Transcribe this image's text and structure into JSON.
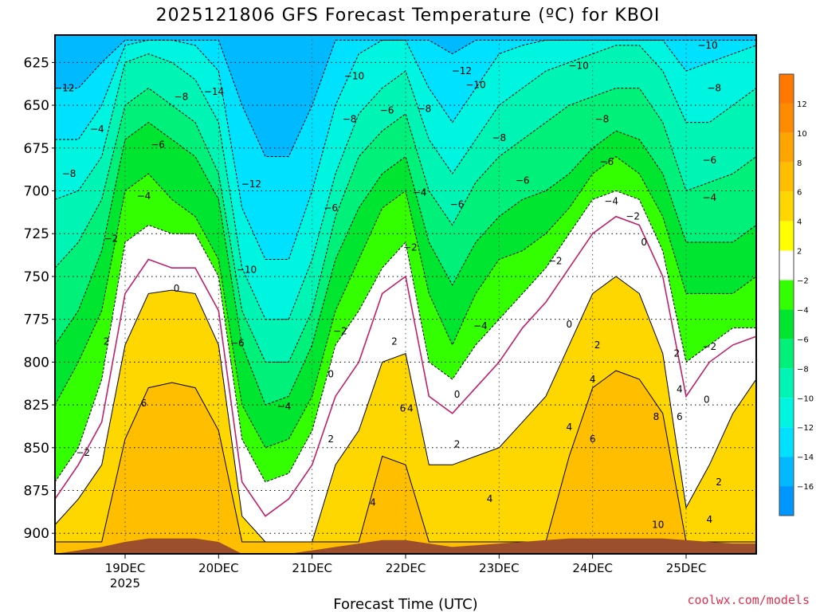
{
  "chart_data": {
    "type": "heatmap",
    "title": "2025121806 GFS Forecast Temperature (ºC) for KBOI",
    "xlabel": "Forecast Time (UTC)",
    "ylabel": "",
    "credit": "coolwx.com/models",
    "y_axis": {
      "ylim": [
        912,
        609
      ],
      "ticks": [
        625,
        650,
        675,
        700,
        725,
        750,
        775,
        800,
        825,
        850,
        875,
        900
      ],
      "scale": "pressure (inverted)"
    },
    "x_axis": {
      "unit": "days from 2025-12-18 06Z",
      "xlim": [
        0,
        7.5
      ],
      "ticks": [
        {
          "x": 0.75,
          "label": "19DEC",
          "sub": "2025"
        },
        {
          "x": 1.75,
          "label": "20DEC",
          "sub": ""
        },
        {
          "x": 2.75,
          "label": "21DEC",
          "sub": ""
        },
        {
          "x": 3.75,
          "label": "22DEC",
          "sub": ""
        },
        {
          "x": 4.75,
          "label": "23DEC",
          "sub": ""
        },
        {
          "x": 5.75,
          "label": "24DEC",
          "sub": ""
        },
        {
          "x": 6.75,
          "label": "25DEC",
          "sub": ""
        }
      ]
    },
    "grid": true,
    "colorbar": {
      "ticks": [
        12,
        10,
        8,
        6,
        4,
        2,
        -2,
        -4,
        -6,
        -8,
        -10,
        -12,
        -14,
        -16
      ],
      "bands": [
        {
          "lo": 12,
          "hi": 14,
          "color": "#ff7800"
        },
        {
          "lo": 10,
          "hi": 12,
          "color": "#ff8c00"
        },
        {
          "lo": 8,
          "hi": 10,
          "color": "#ffa500"
        },
        {
          "lo": 6,
          "hi": 8,
          "color": "#ffbe00"
        },
        {
          "lo": 4,
          "hi": 6,
          "color": "#ffd700"
        },
        {
          "lo": 2,
          "hi": 4,
          "color": "#ffff00"
        },
        {
          "lo": -2,
          "hi": 2,
          "color": "#ffffff"
        },
        {
          "lo": -4,
          "hi": -2,
          "color": "#33ff00"
        },
        {
          "lo": -6,
          "hi": -4,
          "color": "#00e630"
        },
        {
          "lo": -8,
          "hi": -6,
          "color": "#00f07a"
        },
        {
          "lo": -10,
          "hi": -8,
          "color": "#00f5b4"
        },
        {
          "lo": -12,
          "hi": -10,
          "color": "#00f5e1"
        },
        {
          "lo": -14,
          "hi": -12,
          "color": "#00e1ff"
        },
        {
          "lo": -16,
          "hi": -14,
          "color": "#00b9ff"
        },
        {
          "lo": -18,
          "hi": -16,
          "color": "#0096ff"
        }
      ]
    },
    "terrain_color": "#9c4f2c",
    "zero_line_color": "#c0206a",
    "time_days": [
      0,
      0.25,
      0.5,
      0.75,
      1.0,
      1.25,
      1.5,
      1.75,
      2.0,
      2.25,
      2.5,
      2.75,
      3.0,
      3.25,
      3.5,
      3.75,
      4.0,
      4.25,
      4.5,
      4.75,
      5.0,
      5.25,
      5.5,
      5.75,
      6.0,
      6.25,
      6.5,
      6.75,
      7.0,
      7.25,
      7.5
    ],
    "isotherm_pressure_hPa": [
      {
        "temp": 6,
        "values": [
          905,
          905,
          905,
          845,
          815,
          812,
          815,
          840,
          905,
          905,
          905,
          905,
          905,
          905,
          855,
          860,
          905,
          905,
          905,
          905,
          905,
          905,
          855,
          815,
          805,
          810,
          830,
          905,
          905,
          905,
          905
        ]
      },
      {
        "temp": 2,
        "values": [
          895,
          880,
          860,
          790,
          760,
          758,
          760,
          790,
          890,
          905,
          905,
          905,
          860,
          840,
          800,
          795,
          860,
          860,
          855,
          850,
          835,
          820,
          790,
          760,
          750,
          760,
          795,
          885,
          860,
          830,
          810
        ]
      },
      {
        "temp": 0,
        "values": [
          880,
          860,
          835,
          760,
          740,
          745,
          745,
          770,
          870,
          890,
          880,
          860,
          820,
          800,
          760,
          750,
          820,
          830,
          815,
          800,
          780,
          765,
          745,
          725,
          715,
          720,
          750,
          820,
          800,
          790,
          785
        ]
      },
      {
        "temp": -2,
        "values": [
          870,
          850,
          810,
          730,
          720,
          725,
          725,
          750,
          845,
          870,
          865,
          840,
          790,
          770,
          745,
          730,
          800,
          810,
          790,
          775,
          760,
          745,
          725,
          705,
          700,
          705,
          735,
          800,
          790,
          780,
          780
        ]
      },
      {
        "temp": -4,
        "values": [
          825,
          800,
          770,
          700,
          690,
          705,
          715,
          740,
          825,
          850,
          845,
          820,
          770,
          740,
          710,
          700,
          760,
          790,
          760,
          740,
          735,
          725,
          710,
          690,
          680,
          690,
          715,
          760,
          760,
          760,
          750
        ]
      },
      {
        "temp": -6,
        "values": [
          790,
          770,
          735,
          670,
          660,
          670,
          680,
          705,
          790,
          825,
          820,
          790,
          740,
          710,
          690,
          680,
          730,
          755,
          730,
          715,
          705,
          700,
          690,
          675,
          665,
          670,
          690,
          730,
          730,
          730,
          720
        ]
      },
      {
        "temp": -8,
        "values": [
          745,
          730,
          705,
          650,
          640,
          650,
          660,
          690,
          770,
          800,
          800,
          770,
          715,
          680,
          665,
          655,
          700,
          720,
          695,
          680,
          670,
          660,
          650,
          645,
          640,
          640,
          660,
          700,
          695,
          690,
          680
        ]
      },
      {
        "temp": -10,
        "values": [
          705,
          700,
          680,
          625,
          620,
          625,
          635,
          660,
          745,
          775,
          775,
          740,
          690,
          655,
          640,
          630,
          670,
          690,
          670,
          650,
          640,
          630,
          625,
          620,
          615,
          615,
          630,
          660,
          660,
          650,
          640
        ]
      },
      {
        "temp": -12,
        "values": [
          670,
          670,
          650,
          615,
          612,
          612,
          615,
          630,
          710,
          740,
          740,
          700,
          650,
          620,
          612,
          612,
          640,
          660,
          640,
          620,
          615,
          612,
          612,
          612,
          612,
          612,
          612,
          630,
          625,
          620,
          615
        ]
      },
      {
        "temp": -14,
        "values": [
          640,
          640,
          625,
          612,
          612,
          612,
          612,
          612,
          650,
          680,
          680,
          650,
          612,
          612,
          612,
          612,
          612,
          620,
          612,
          612,
          612,
          612,
          612,
          612,
          612,
          612,
          612,
          612,
          612,
          612,
          612
        ]
      }
    ],
    "terrain_pressure_hPa": [
      912,
      910,
      908,
      905,
      903,
      903,
      903,
      905,
      912,
      912,
      912,
      910,
      908,
      906,
      904,
      904,
      906,
      908,
      907,
      906,
      905,
      904,
      903,
      903,
      903,
      903,
      903,
      904,
      905,
      906,
      906
    ],
    "contour_labels": [
      {
        "temp": -12,
        "x": 0.1,
        "y": 640
      },
      {
        "temp": -8,
        "x": 0.15,
        "y": 690
      },
      {
        "temp": -4,
        "x": 0.45,
        "y": 664
      },
      {
        "temp": -6,
        "x": 1.1,
        "y": 673
      },
      {
        "temp": -8,
        "x": 1.35,
        "y": 645
      },
      {
        "temp": -14,
        "x": 1.7,
        "y": 642
      },
      {
        "temp": -4,
        "x": 0.95,
        "y": 703
      },
      {
        "temp": -2,
        "x": 0.6,
        "y": 728
      },
      {
        "temp": 0,
        "x": 1.3,
        "y": 757
      },
      {
        "temp": 2,
        "x": 0.55,
        "y": 788
      },
      {
        "temp": 6,
        "x": 0.95,
        "y": 824
      },
      {
        "temp": -2,
        "x": 0.3,
        "y": 853
      },
      {
        "temp": -12,
        "x": 2.1,
        "y": 696
      },
      {
        "temp": -10,
        "x": 2.05,
        "y": 746
      },
      {
        "temp": -6,
        "x": 1.95,
        "y": 789
      },
      {
        "temp": -4,
        "x": 2.45,
        "y": 826
      },
      {
        "temp": -10,
        "x": 3.2,
        "y": 633
      },
      {
        "temp": -8,
        "x": 3.15,
        "y": 658
      },
      {
        "temp": -6,
        "x": 2.95,
        "y": 710
      },
      {
        "temp": -2,
        "x": 3.05,
        "y": 782
      },
      {
        "temp": 0,
        "x": 2.95,
        "y": 807
      },
      {
        "temp": 2,
        "x": 2.95,
        "y": 845
      },
      {
        "temp": 4,
        "x": 3.4,
        "y": 882
      },
      {
        "temp": -6,
        "x": 3.55,
        "y": 653
      },
      {
        "temp": -8,
        "x": 3.95,
        "y": 652
      },
      {
        "temp": -4,
        "x": 3.9,
        "y": 701
      },
      {
        "temp": -2,
        "x": 3.8,
        "y": 733
      },
      {
        "temp": 2,
        "x": 3.63,
        "y": 788
      },
      {
        "temp": 6,
        "x": 3.72,
        "y": 827
      },
      {
        "temp": 4,
        "x": 3.8,
        "y": 827
      },
      {
        "temp": -6,
        "x": 4.3,
        "y": 708
      },
      {
        "temp": -12,
        "x": 4.35,
        "y": 630
      },
      {
        "temp": -4,
        "x": 4.55,
        "y": 779
      },
      {
        "temp": 0,
        "x": 4.3,
        "y": 819
      },
      {
        "temp": 2,
        "x": 4.3,
        "y": 848
      },
      {
        "temp": 4,
        "x": 4.65,
        "y": 880
      },
      {
        "temp": -10,
        "x": 4.5,
        "y": 638
      },
      {
        "temp": -8,
        "x": 4.75,
        "y": 669
      },
      {
        "temp": -6,
        "x": 5.0,
        "y": 694
      },
      {
        "temp": -2,
        "x": 5.35,
        "y": 741
      },
      {
        "temp": 0,
        "x": 5.5,
        "y": 778
      },
      {
        "temp": 4,
        "x": 5.5,
        "y": 838
      },
      {
        "temp": -10,
        "x": 5.6,
        "y": 627
      },
      {
        "temp": -8,
        "x": 5.85,
        "y": 658
      },
      {
        "temp": -6,
        "x": 5.9,
        "y": 683
      },
      {
        "temp": -4,
        "x": 5.95,
        "y": 706
      },
      {
        "temp": -2,
        "x": 6.18,
        "y": 715
      },
      {
        "temp": 0,
        "x": 6.3,
        "y": 730
      },
      {
        "temp": 2,
        "x": 5.8,
        "y": 790
      },
      {
        "temp": 4,
        "x": 5.75,
        "y": 810
      },
      {
        "temp": 6,
        "x": 5.75,
        "y": 845
      },
      {
        "temp": 2,
        "x": 6.65,
        "y": 795
      },
      {
        "temp": 4,
        "x": 6.68,
        "y": 816
      },
      {
        "temp": 6,
        "x": 6.68,
        "y": 832
      },
      {
        "temp": 8,
        "x": 6.43,
        "y": 832
      },
      {
        "temp": 10,
        "x": 6.45,
        "y": 895
      },
      {
        "temp": -10,
        "x": 6.98,
        "y": 615
      },
      {
        "temp": -8,
        "x": 7.05,
        "y": 640
      },
      {
        "temp": -6,
        "x": 7.0,
        "y": 682
      },
      {
        "temp": -4,
        "x": 7.0,
        "y": 704
      },
      {
        "temp": -2,
        "x": 7.0,
        "y": 791
      },
      {
        "temp": 0,
        "x": 6.97,
        "y": 822
      },
      {
        "temp": 2,
        "x": 7.1,
        "y": 870
      },
      {
        "temp": 4,
        "x": 7.0,
        "y": 892
      }
    ]
  }
}
